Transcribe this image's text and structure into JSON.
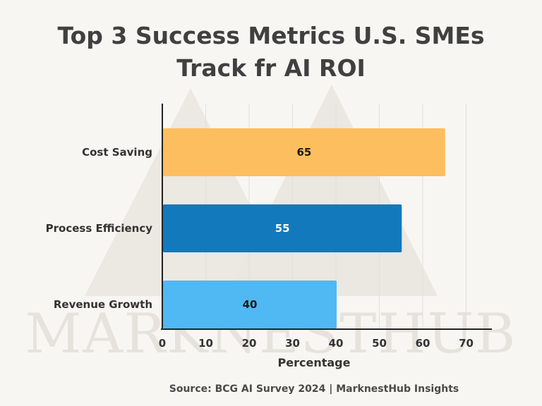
{
  "watermark": {
    "text": "MARKNESTHUB"
  },
  "footer": {
    "source": "Source: BCG AI Survey 2024 | MarknestHub Insights"
  },
  "chart_data": {
    "type": "bar",
    "orientation": "horizontal",
    "title_lines": [
      "Top 3 Success Metrics U.S. SMEs",
      "Track fr AI ROI"
    ],
    "categories": [
      "Cost Saving",
      "Process Efficiency",
      "Revenue Growth"
    ],
    "values": [
      65,
      55,
      40
    ],
    "value_labels": [
      "65",
      "55",
      "40"
    ],
    "bar_colors": [
      "#fdbe5f",
      "#1279bd",
      "#50b8f3"
    ],
    "label_colors": [
      "#1a1a1a",
      "#ffffff",
      "#1a1a1a"
    ],
    "xlabel": "Percentage",
    "ylabel": "",
    "xlim": [
      0,
      70
    ],
    "x_ticks": [
      "0",
      "10",
      "20",
      "30",
      "40",
      "50",
      "60",
      "70"
    ],
    "grid": "vertical",
    "legend": "none"
  }
}
